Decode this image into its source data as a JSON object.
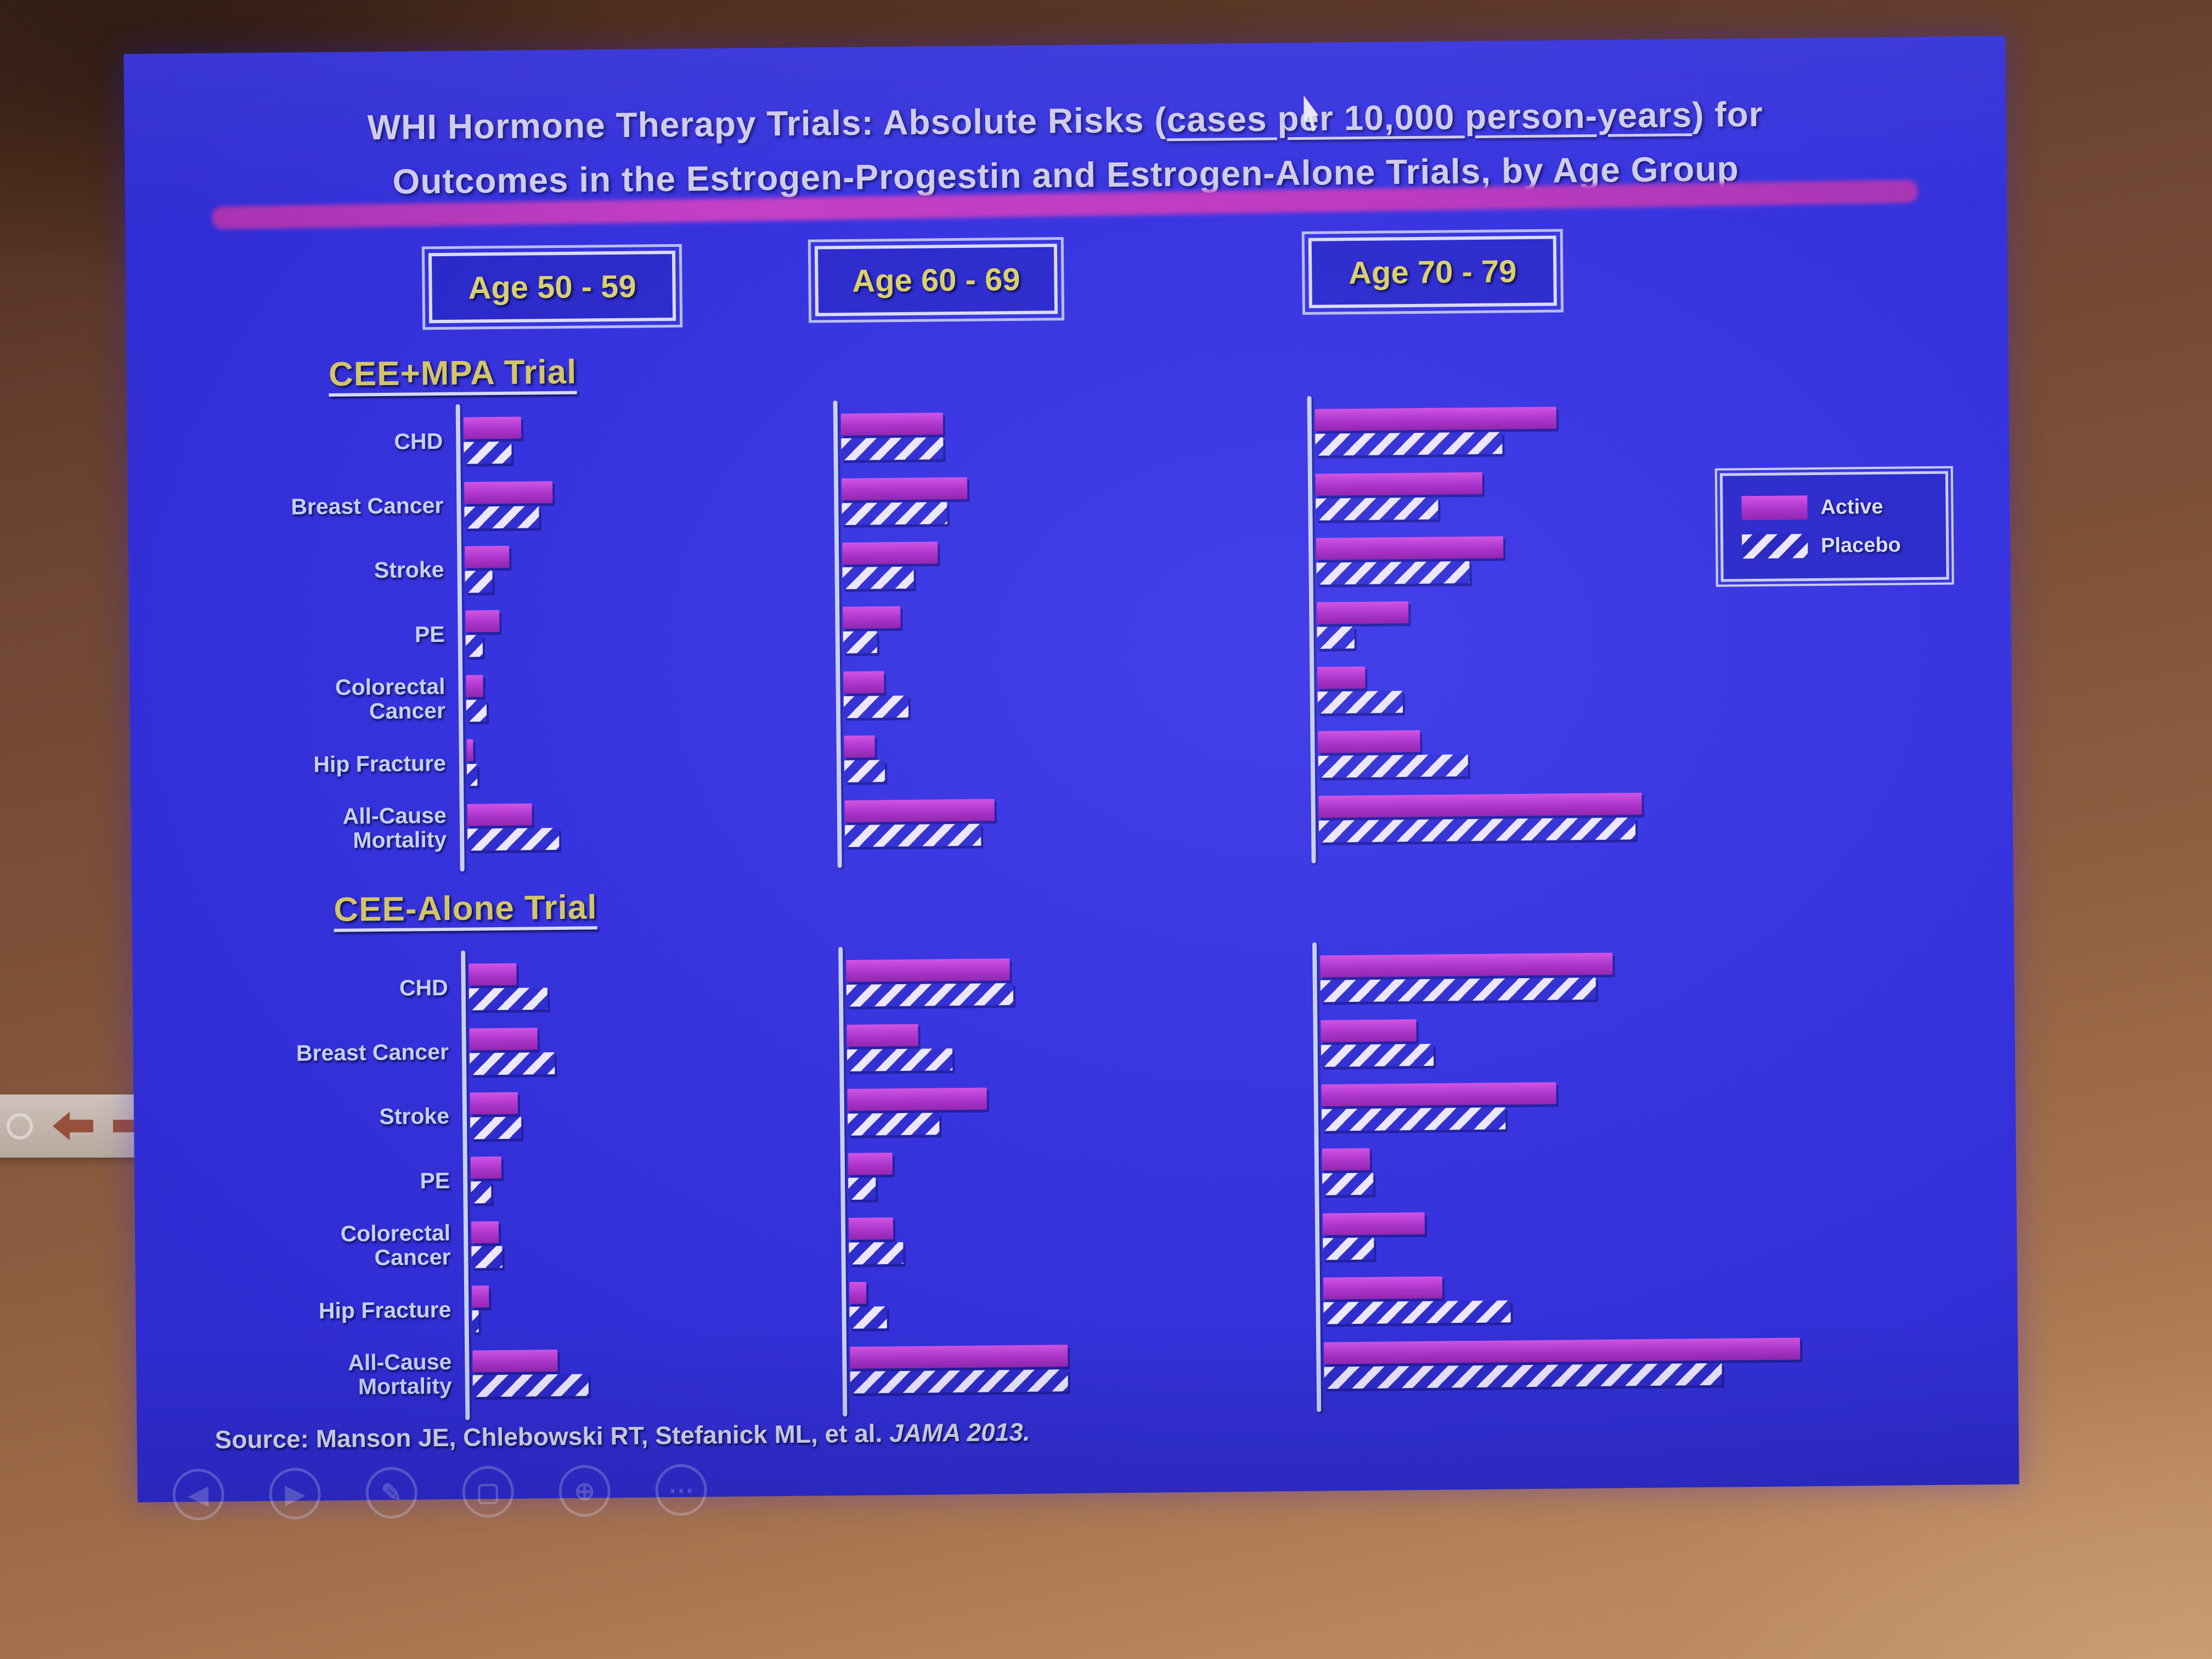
{
  "slide": {
    "title": {
      "part1": "WHI Hormone Therapy Trials:  Absolute Risks (",
      "underlined": "cases per 10,000 person-years",
      "part2a": ") for",
      "part2b": "Outcomes in the Estrogen-Progestin and Estrogen-Alone Trials, by Age Group"
    },
    "age_group_labels": [
      "Age 50 - 59",
      "Age 60 - 69",
      "Age 70 - 79"
    ],
    "legend": {
      "active_label": "Active",
      "placebo_label": "Placebo"
    },
    "source": {
      "prefix": "Source:  Manson JE, Chlebowski RT, Stefanick ML, et al. ",
      "citation": "JAMA 2013."
    },
    "colors": {
      "slide_background": "#3734df",
      "active_bar": "#ad35cc",
      "placebo_stripe": "#ece7ff",
      "age_label_text": "#d9d06e",
      "trial_header_text": "#d3c566",
      "row_label_text": "#c5d0f8",
      "divider_bar": "#c33fc6"
    }
  },
  "chart_data": {
    "type": "bar",
    "orientation": "horizontal",
    "title": "WHI Hormone Therapy Trials: Absolute Risks (cases per 10,000 person-years) for Outcomes in the Estrogen-Progestin and Estrogen-Alone Trials, by Age Group",
    "units": "cases per 10,000 person-years",
    "value_note": "values estimated from bar lengths; chart shows no numeric axis",
    "age_groups": [
      "Age 50 - 59",
      "Age 60 - 69",
      "Age 70 - 79"
    ],
    "legend": [
      "Active",
      "Placebo"
    ],
    "series_order": [
      "active",
      "placebo"
    ],
    "trials": [
      {
        "name": "CEE+MPA Trial",
        "outcomes": [
          {
            "label": "CHD",
            "by_age": [
              [
                17,
                14
              ],
              [
                30,
                30
              ],
              [
                71,
                55
              ]
            ]
          },
          {
            "label": "Breast Cancer",
            "by_age": [
              [
                26,
                22
              ],
              [
                37,
                31
              ],
              [
                49,
                36
              ]
            ]
          },
          {
            "label": "Stroke",
            "by_age": [
              [
                13,
                8
              ],
              [
                28,
                21
              ],
              [
                55,
                45
              ]
            ]
          },
          {
            "label": "PE",
            "by_age": [
              [
                10,
                5
              ],
              [
                17,
                10
              ],
              [
                27,
                11
              ]
            ]
          },
          {
            "label": "Colorectal\nCancer",
            "by_age": [
              [
                5,
                6
              ],
              [
                12,
                19
              ],
              [
                14,
                25
              ]
            ]
          },
          {
            "label": "Hip Fracture",
            "by_age": [
              [
                2,
                3
              ],
              [
                9,
                12
              ],
              [
                30,
                44
              ]
            ]
          },
          {
            "label": "All-Cause\nMortality",
            "by_age": [
              [
                19,
                27
              ],
              [
                44,
                40
              ],
              [
                95,
                93
              ]
            ]
          }
        ]
      },
      {
        "name": "CEE-Alone Trial",
        "outcomes": [
          {
            "label": "CHD",
            "by_age": [
              [
                14,
                23
              ],
              [
                48,
                49
              ],
              [
                86,
                81
              ]
            ]
          },
          {
            "label": "Breast Cancer",
            "by_age": [
              [
                20,
                25
              ],
              [
                21,
                31
              ],
              [
                28,
                33
              ]
            ]
          },
          {
            "label": "Stroke",
            "by_age": [
              [
                14,
                15
              ],
              [
                41,
                27
              ],
              [
                69,
                54
              ]
            ]
          },
          {
            "label": "PE",
            "by_age": [
              [
                9,
                6
              ],
              [
                13,
                8
              ],
              [
                14,
                15
              ]
            ]
          },
          {
            "label": "Colorectal\nCancer",
            "by_age": [
              [
                8,
                9
              ],
              [
                13,
                16
              ],
              [
                30,
                15
              ]
            ]
          },
          {
            "label": "Hip Fracture",
            "by_age": [
              [
                5,
                2
              ],
              [
                5,
                11
              ],
              [
                35,
                55
              ]
            ]
          },
          {
            "label": "All-Cause\nMortality",
            "by_age": [
              [
                25,
                34
              ],
              [
                64,
                64
              ],
              [
                140,
                117
              ]
            ]
          }
        ]
      }
    ]
  }
}
